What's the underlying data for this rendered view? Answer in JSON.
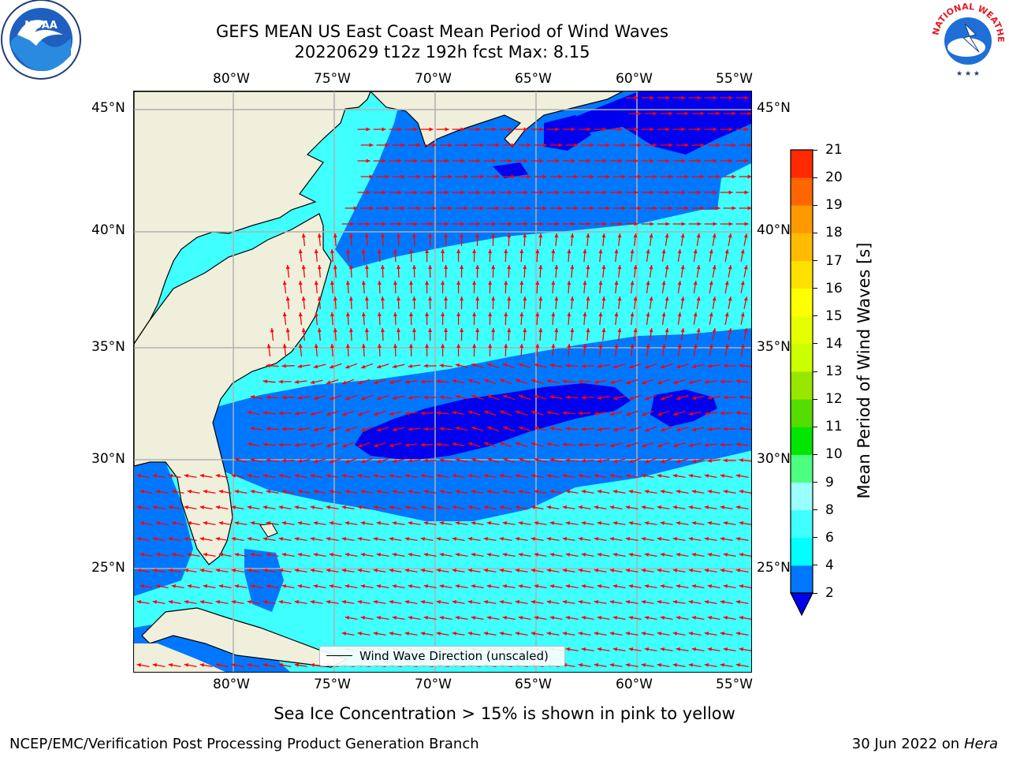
{
  "title": {
    "line1": "GEFS MEAN US East Coast Mean Period of Wind Waves",
    "line2": "20220629 t12z 192h fcst   Max: 8.15"
  },
  "logos": {
    "left": {
      "text": "NOAA",
      "icon": "noaa-logo-icon"
    },
    "right": {
      "text": "NATIONAL WEATHER SERVICE",
      "icon": "nws-logo-icon"
    }
  },
  "axes": {
    "lon_ticks": [
      "80°W",
      "75°W",
      "70°W",
      "65°W",
      "60°W",
      "55°W"
    ],
    "lat_ticks": [
      "45°N",
      "40°N",
      "35°N",
      "30°N",
      "25°N"
    ]
  },
  "legend": {
    "label": "Wind Wave Direction (unscaled)"
  },
  "colorbar": {
    "label": "Mean Period of Wind Waves [s]",
    "ticks": [
      "2",
      "4",
      "6",
      "8",
      "9",
      "10",
      "11",
      "12",
      "13",
      "14",
      "15",
      "16",
      "17",
      "18",
      "19",
      "20",
      "21"
    ],
    "colors": [
      "#0077ff",
      "#00ffff",
      "#3fffff",
      "#99ffff",
      "#4dff80",
      "#00e600",
      "#55dd00",
      "#99e600",
      "#ccff00",
      "#e6ff00",
      "#ffff00",
      "#ffe100",
      "#ffbb00",
      "#ff9900",
      "#ff6600",
      "#ff2a00",
      "#ff0000"
    ],
    "under_color": "#0000ee"
  },
  "colors": {
    "land": "#efefdc",
    "arrows": "#ff0000",
    "dark_blue": "#0000ee",
    "mid_blue": "#0077ff",
    "cyan": "#3fffff"
  },
  "footer": {
    "ice_note": "Sea Ice Concentration > 15% is shown in pink to yellow",
    "left": "NCEP/EMC/Verification Post Processing Product Generation Branch",
    "date": "30 Jun 2022 on",
    "machine": "Hera"
  }
}
